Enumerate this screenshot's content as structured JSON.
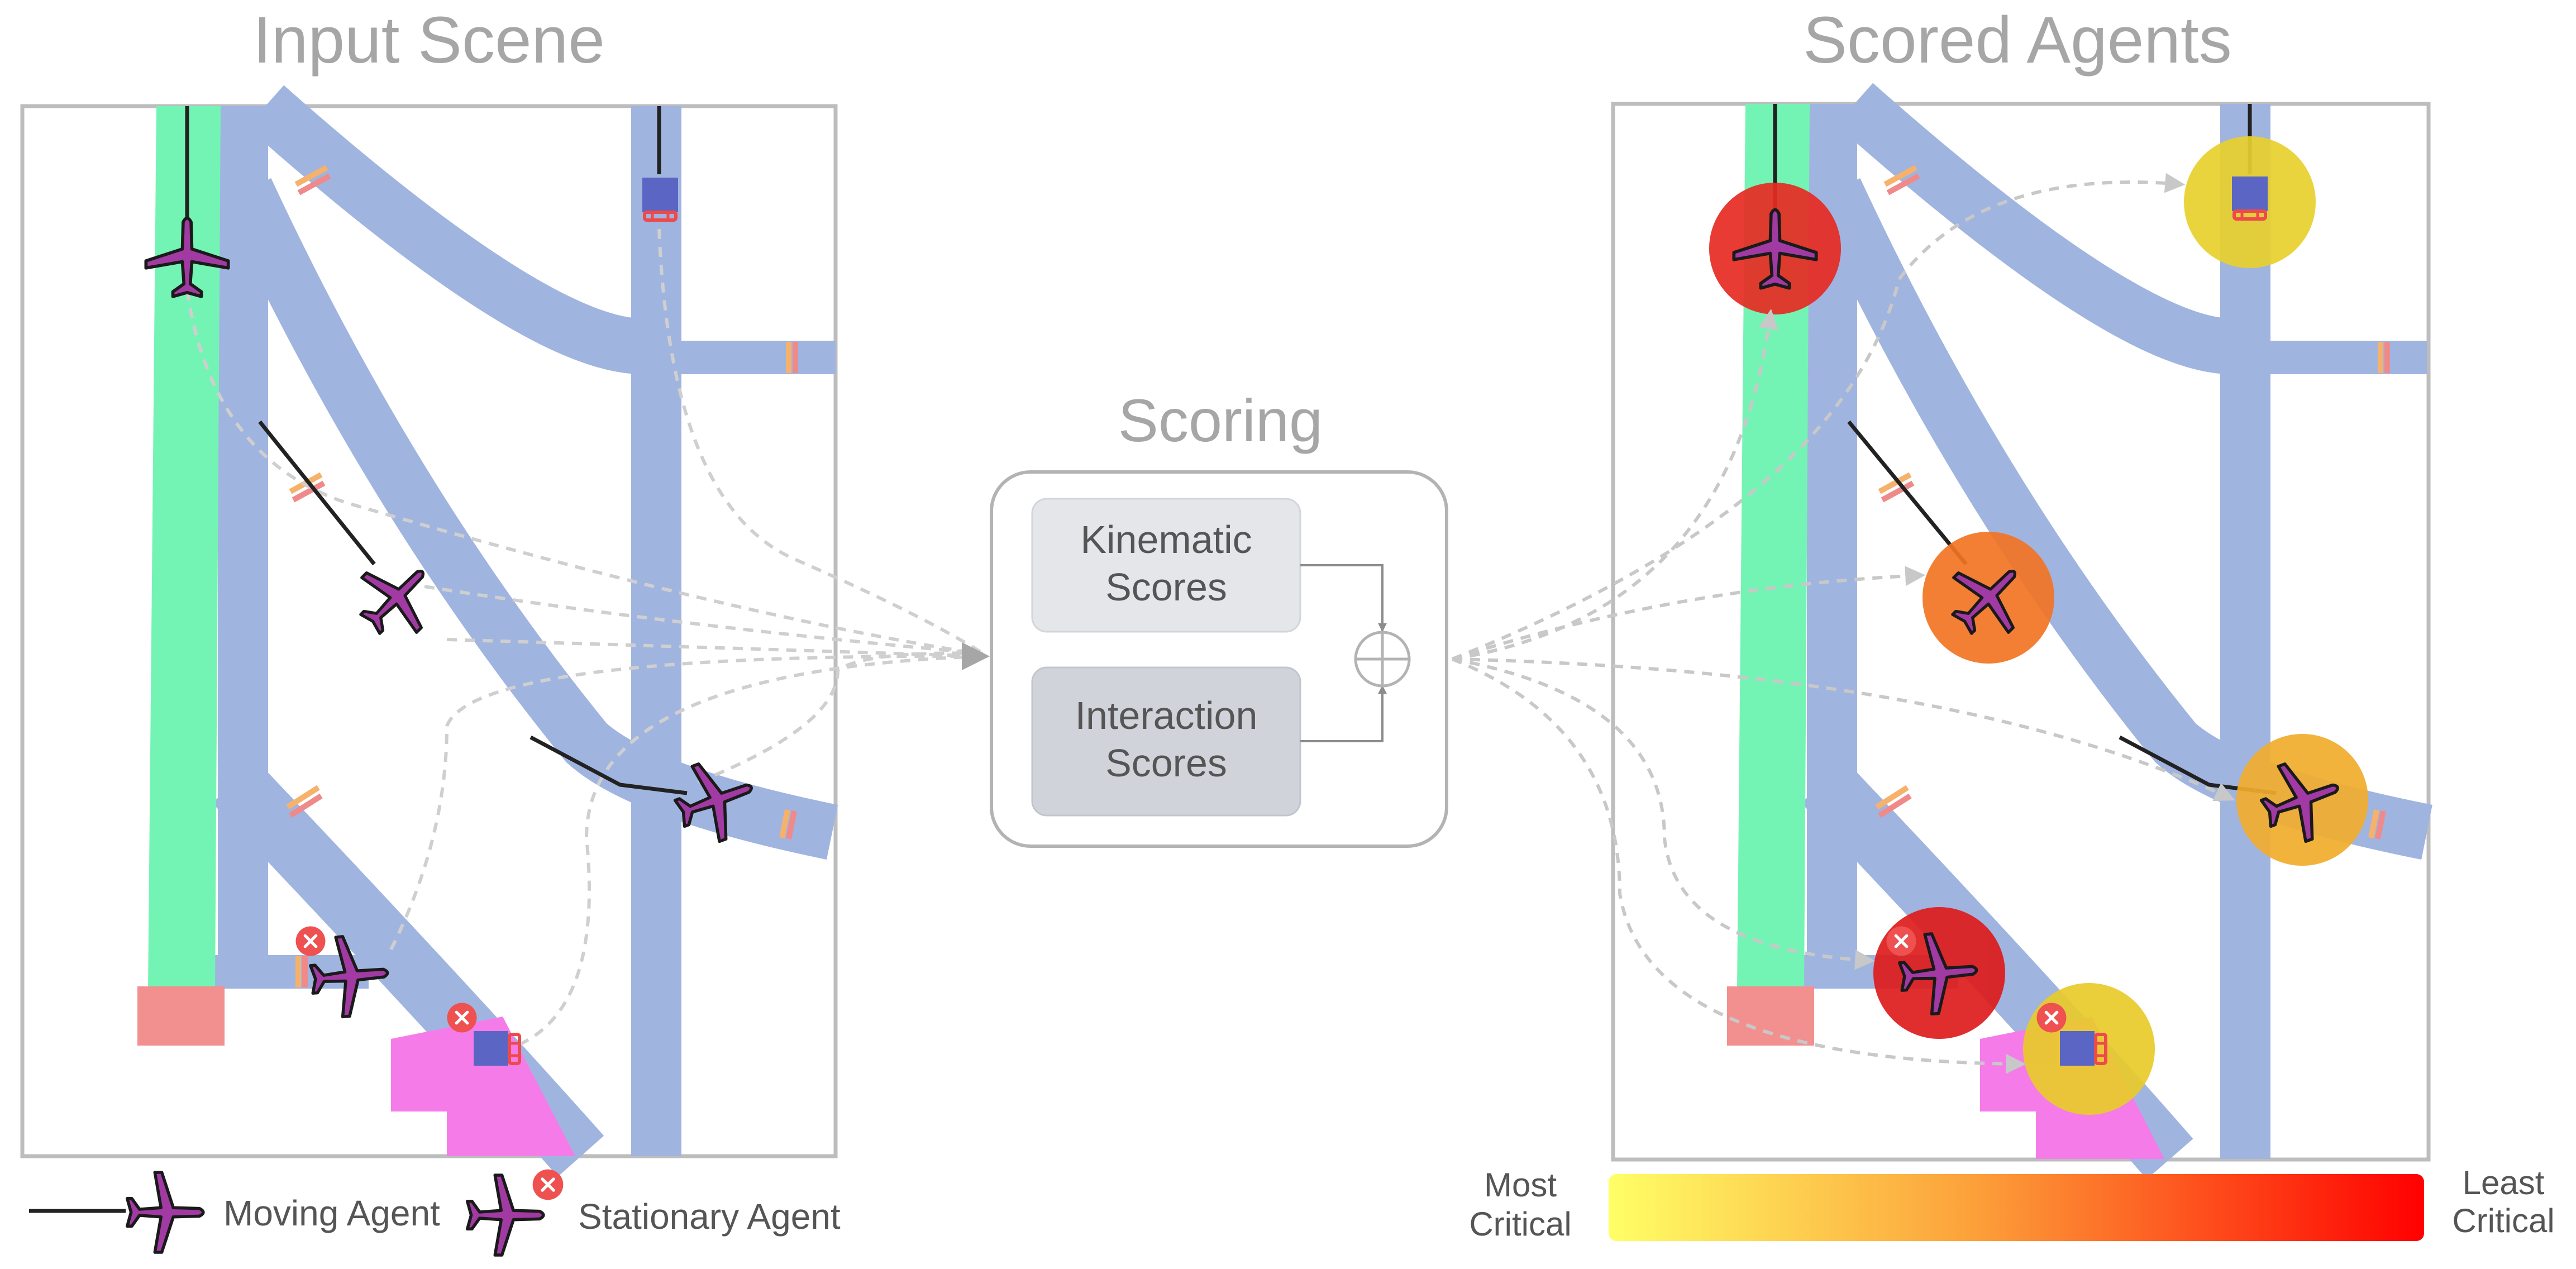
{
  "panels": {
    "input_title": "Input Scene",
    "scored_title": "Scored Agents",
    "scoring_title": "Scoring"
  },
  "scoring": {
    "kinematic_line1": "Kinematic",
    "kinematic_line2": "Scores",
    "interaction_line1": "Interaction",
    "interaction_line2": "Scores"
  },
  "legend": {
    "moving_agent": "Moving Agent",
    "stationary_agent": "Stationary Agent"
  },
  "colorbar": {
    "left_line1": "Most",
    "left_line2": "Critical",
    "right_line1": "Least",
    "right_line2": "Critical",
    "gradient_start": "#ffff66",
    "gradient_mid": "#fca03a",
    "gradient_end": "#ff0000"
  },
  "colors": {
    "taxiway": "#a0b4e0",
    "runway": "#74f4b4",
    "apron": "#f57ce8",
    "gate": "#f29090",
    "aircraft": "#a23aa3",
    "vehicle": "#5b66c4",
    "stationary_badge": "#ef5050",
    "score_red": "#e52a22",
    "score_dark_red": "#dd1c1c",
    "score_orange": "#f27424",
    "score_amber": "#f1ac2c",
    "score_yellow": "#e7d02c",
    "score_yellow2": "#e8cb2a"
  },
  "icons": {
    "aircraft": "airplane-icon",
    "vehicle": "ground-vehicle-icon",
    "stationary": "stationary-x-badge-icon",
    "aggregate": "circle-plus-icon"
  }
}
